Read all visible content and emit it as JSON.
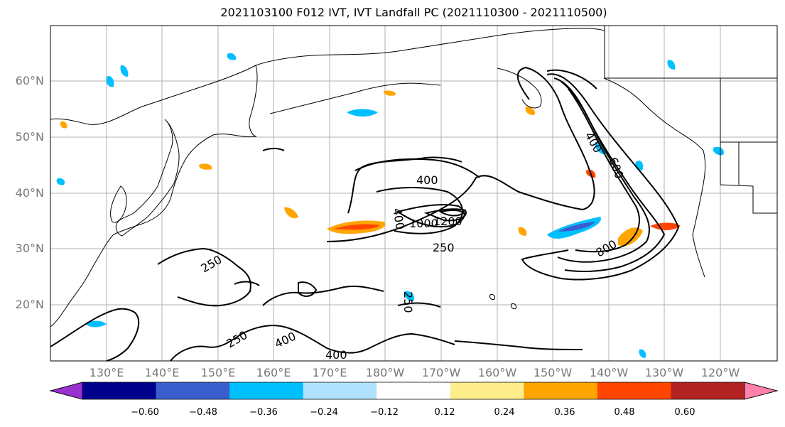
{
  "title": "2021103100 F012 IVT, IVT Landfall PC (2021110300 - 2021110500)",
  "lat_labels": [
    "60°N",
    "50°N",
    "40°N",
    "30°N",
    "20°N"
  ],
  "lon_labels": [
    "130°E",
    "140°E",
    "150°E",
    "160°E",
    "170°E",
    "180°W",
    "170°W",
    "160°W",
    "150°W",
    "140°W",
    "130°W",
    "120°W"
  ],
  "contour_labels": [
    "400",
    "250",
    "250",
    "400",
    "400",
    "1000",
    "1200",
    "250",
    "250",
    "800",
    "400",
    "600",
    "250",
    "400"
  ],
  "colorbar": {
    "ticks": [
      "−0.60",
      "−0.48",
      "−0.36",
      "−0.24",
      "−0.12",
      "0.12",
      "0.24",
      "0.36",
      "0.48",
      "0.60"
    ],
    "colors": [
      "#9b30d0",
      "#00008b",
      "#3a5fcd",
      "#00bfff",
      "#b0e2ff",
      "#ffffff",
      "#ffec8b",
      "#ffa500",
      "#ff4500",
      "#b22222",
      "#ff82ab"
    ]
  },
  "colors": {
    "land": "#000000",
    "contour": "#000000",
    "grid": "#b0b0b0"
  }
}
